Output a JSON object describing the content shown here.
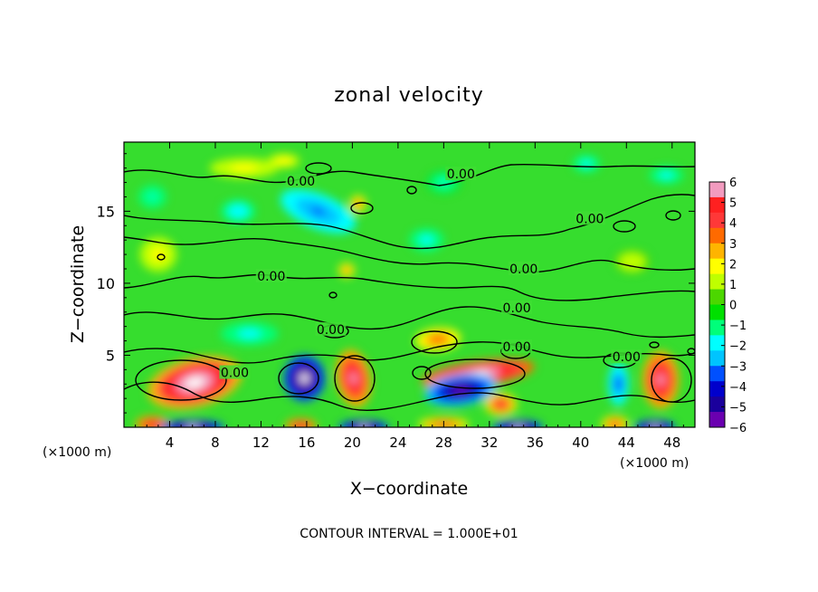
{
  "chart_data": {
    "type": "heatmap",
    "title": "zonal velocity",
    "xlabel": "X−coordinate",
    "ylabel": "Z−coordinate",
    "x_unit_left": "(×1000 m)",
    "x_unit_right": "(×1000 m)",
    "footer": "CONTOUR INTERVAL = 1.000E+01",
    "xlim": [
      0,
      50
    ],
    "ylim": [
      0,
      19.8
    ],
    "x_ticks": [
      4,
      8,
      12,
      16,
      20,
      24,
      28,
      32,
      36,
      40,
      44,
      48
    ],
    "x_tick_labels": [
      "4",
      "8",
      "12",
      "16",
      "20",
      "24",
      "28",
      "32",
      "36",
      "40",
      "44",
      "48"
    ],
    "y_ticks": [
      5,
      10,
      15
    ],
    "y_tick_labels": [
      "5",
      "10",
      "15"
    ],
    "colorbar": {
      "min": -6,
      "max": 6,
      "ticks": [
        6,
        5,
        4,
        3,
        2,
        1,
        0,
        -1,
        -2,
        -3,
        -4,
        -5,
        -6
      ],
      "tick_labels": [
        "6",
        "5",
        "4",
        "3",
        "2",
        "1",
        "0",
        "−1",
        "−2",
        "−3",
        "−4",
        "−5",
        "−6"
      ],
      "colors": [
        "#f29bbf",
        "#ff2020",
        "#ff3838",
        "#ff6a00",
        "#ffb400",
        "#ffff00",
        "#bfff00",
        "#4cd700",
        "#00e000",
        "#00ff7a",
        "#00ffff",
        "#00c4ff",
        "#0050ff",
        "#0000cc",
        "#1a009c",
        "#6a00b0"
      ]
    },
    "contour_labels": [
      {
        "text": "0.00",
        "x": 15.5,
        "z": 17.1
      },
      {
        "text": "0.00",
        "x": 29.5,
        "z": 17.6
      },
      {
        "text": "0.00",
        "x": 40.8,
        "z": 14.5
      },
      {
        "text": "0.00",
        "x": 12.9,
        "z": 10.5
      },
      {
        "text": "0.00",
        "x": 35.0,
        "z": 11.0
      },
      {
        "text": "0.00",
        "x": 34.4,
        "z": 8.3
      },
      {
        "text": "0.00",
        "x": 18.1,
        "z": 6.8
      },
      {
        "text": "0.00",
        "x": 34.4,
        "z": 5.6
      },
      {
        "text": "0.00",
        "x": 44.0,
        "z": 4.9
      },
      {
        "text": "0.00",
        "x": 9.7,
        "z": 3.8
      }
    ],
    "blobs": [
      {
        "x": 6.2,
        "z": 3.1,
        "rx": 4.2,
        "rz": 1.7,
        "v": 6.2,
        "rot": -14
      },
      {
        "x": 2.5,
        "z": 0.2,
        "rx": 1.5,
        "rz": 0.6,
        "v": 5.0,
        "rot": 0
      },
      {
        "x": 6.0,
        "z": 0.0,
        "rx": 2.8,
        "rz": 0.5,
        "v": -6.5,
        "rot": 0
      },
      {
        "x": 15.8,
        "z": 3.4,
        "rx": 1.8,
        "rz": 1.6,
        "v": -6.3,
        "rot": 0
      },
      {
        "x": 15.5,
        "z": 0.1,
        "rx": 1.4,
        "rz": 0.5,
        "v": 5.0,
        "rot": 0
      },
      {
        "x": 20.1,
        "z": 3.4,
        "rx": 1.5,
        "rz": 2.0,
        "v": 5.8,
        "rot": -10
      },
      {
        "x": 21.0,
        "z": 0.0,
        "rx": 2.2,
        "rz": 0.5,
        "v": -6.5,
        "rot": 0
      },
      {
        "x": 31.0,
        "z": 3.7,
        "rx": 5.0,
        "rz": 0.9,
        "v": 6.3,
        "rot": -8
      },
      {
        "x": 29.5,
        "z": 2.6,
        "rx": 3.2,
        "rz": 1.1,
        "v": -6.0,
        "rot": -8
      },
      {
        "x": 33.0,
        "z": 1.6,
        "rx": 1.4,
        "rz": 0.8,
        "v": 4.5,
        "rot": 0
      },
      {
        "x": 28.0,
        "z": 0.2,
        "rx": 2.2,
        "rz": 0.5,
        "v": 4.0,
        "rot": 0
      },
      {
        "x": 34.5,
        "z": 0.0,
        "rx": 2.2,
        "rz": 0.5,
        "v": -6.5,
        "rot": 0
      },
      {
        "x": 27.5,
        "z": 6.1,
        "rx": 2.0,
        "rz": 0.8,
        "v": 3.5,
        "rot": -5
      },
      {
        "x": 43.3,
        "z": 3.0,
        "rx": 0.9,
        "rz": 1.5,
        "v": -3.5,
        "rot": 0
      },
      {
        "x": 47.0,
        "z": 3.3,
        "rx": 1.6,
        "rz": 2.0,
        "v": 6.0,
        "rot": 0
      },
      {
        "x": 46.5,
        "z": 0.0,
        "rx": 1.8,
        "rz": 0.5,
        "v": -6.5,
        "rot": 0
      },
      {
        "x": 43.0,
        "z": 0.2,
        "rx": 1.2,
        "rz": 0.6,
        "v": 4.0,
        "rot": 0
      },
      {
        "x": 11.0,
        "z": 6.5,
        "rx": 2.5,
        "rz": 0.8,
        "v": -2.0,
        "rot": 0
      },
      {
        "x": 17.0,
        "z": 15.0,
        "rx": 3.5,
        "rz": 1.2,
        "v": -3.2,
        "rot": 22
      },
      {
        "x": 10.0,
        "z": 15.0,
        "rx": 1.5,
        "rz": 0.8,
        "v": -2.2,
        "rot": 0
      },
      {
        "x": 20.5,
        "z": 15.5,
        "rx": 0.7,
        "rz": 0.6,
        "v": 3.5,
        "rot": 0
      },
      {
        "x": 19.5,
        "z": 10.9,
        "rx": 0.7,
        "rz": 0.5,
        "v": 3.2,
        "rot": 0
      },
      {
        "x": 10.5,
        "z": 18.0,
        "rx": 3.0,
        "rz": 0.7,
        "v": 2.0,
        "rot": 0
      },
      {
        "x": 14.0,
        "z": 18.5,
        "rx": 1.4,
        "rz": 0.5,
        "v": 2.2,
        "rot": 0
      },
      {
        "x": 26.5,
        "z": 13.0,
        "rx": 1.5,
        "rz": 0.8,
        "v": -1.8,
        "rot": 0
      },
      {
        "x": 40.5,
        "z": 18.3,
        "rx": 1.2,
        "rz": 0.6,
        "v": -2.0,
        "rot": 0
      },
      {
        "x": 47.5,
        "z": 17.5,
        "rx": 1.5,
        "rz": 0.6,
        "v": -1.8,
        "rot": 0
      },
      {
        "x": 3.0,
        "z": 12.0,
        "rx": 1.6,
        "rz": 1.2,
        "v": 1.8,
        "rot": 0
      },
      {
        "x": 2.5,
        "z": 16.0,
        "rx": 1.2,
        "rz": 0.8,
        "v": -1.6,
        "rot": 0
      },
      {
        "x": 28.0,
        "z": 17.0,
        "rx": 1.5,
        "rz": 0.8,
        "v": -1.5,
        "rot": 0
      },
      {
        "x": 44.5,
        "z": 11.5,
        "rx": 1.5,
        "rz": 0.8,
        "v": 1.5,
        "rot": 0
      }
    ]
  }
}
